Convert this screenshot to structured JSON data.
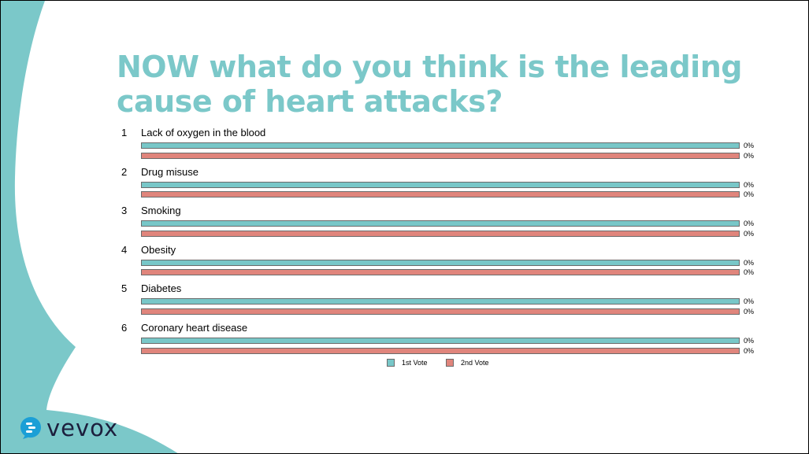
{
  "slide": {
    "title": "NOW what do you think is the leading cause of heart attacks?"
  },
  "colors": {
    "accent": "#7bc8c9",
    "first_vote": "#78c7c8",
    "second_vote": "#e0857c",
    "logo_text": "#1c1f3d"
  },
  "chart_data": {
    "type": "bar",
    "orientation": "horizontal",
    "categories": [
      "Lack of oxygen in the blood",
      "Drug misuse",
      "Smoking",
      "Obesity",
      "Diabetes",
      "Coronary heart disease"
    ],
    "category_numbers": [
      "1",
      "2",
      "3",
      "4",
      "5",
      "6"
    ],
    "series": [
      {
        "name": "1st Vote",
        "values": [
          0,
          0,
          0,
          0,
          0,
          0
        ],
        "labels": [
          "0%",
          "0%",
          "0%",
          "0%",
          "0%",
          "0%"
        ]
      },
      {
        "name": "2nd Vote",
        "values": [
          0,
          0,
          0,
          0,
          0,
          0
        ],
        "labels": [
          "0%",
          "0%",
          "0%",
          "0%",
          "0%",
          "0%"
        ]
      }
    ],
    "legend_position": "bottom"
  },
  "logo": {
    "text": "vevox",
    "icon": "vevox-speech-bubble-icon"
  }
}
